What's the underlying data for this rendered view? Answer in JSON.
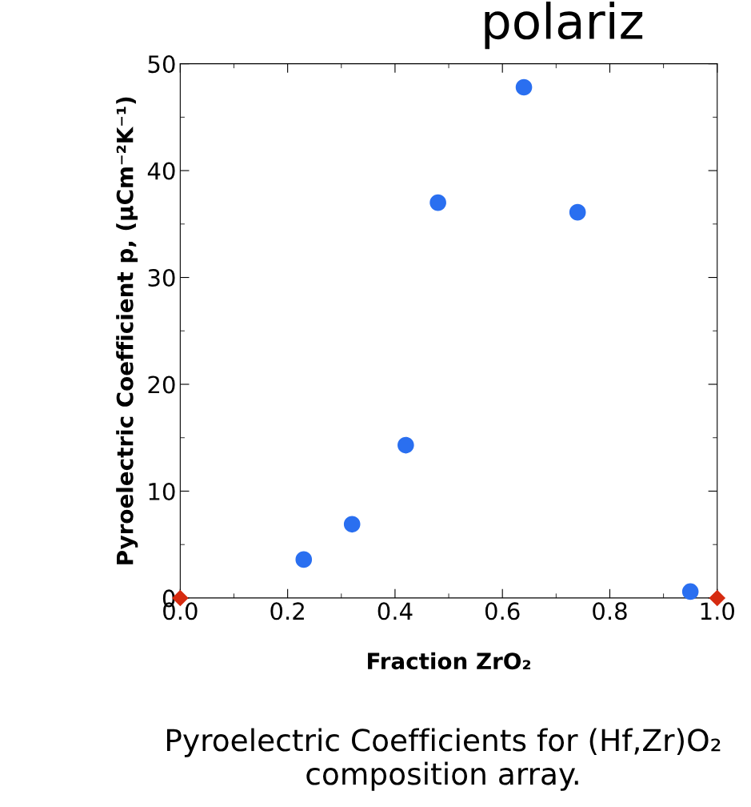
{
  "chart_data": {
    "type": "scatter",
    "xlabel": "Fraction ZrO₂",
    "ylabel": "Pyroelectric Coefficient p, (μCm⁻²K⁻¹)",
    "xlim": [
      0,
      1
    ],
    "ylim": [
      0,
      50
    ],
    "xticks": [
      {
        "value": 0,
        "label": "0.0"
      },
      0.2,
      0.4,
      0.6,
      0.8,
      {
        "value": 1,
        "label": "1.0"
      }
    ],
    "yticks": [
      0,
      10,
      20,
      30,
      40,
      50
    ],
    "grid": false,
    "series": [
      {
        "color": "#2a6ff0",
        "marker": "circle",
        "x": [
          0.23,
          0.32,
          0.42,
          0.48,
          0.64,
          0.74,
          0.95
        ],
        "values": [
          3.6,
          6.9,
          14.3,
          37.0,
          47.8,
          36.1,
          0.6
        ]
      },
      {
        "color": "#d62b10",
        "marker": "diamond",
        "x": [
          0.0,
          1.0
        ],
        "values": [
          0,
          0
        ]
      }
    ],
    "annotations": [
      "polariz",
      "Pyroelectric Coefficients for (Hf,Zr)O₂ composition array."
    ]
  }
}
